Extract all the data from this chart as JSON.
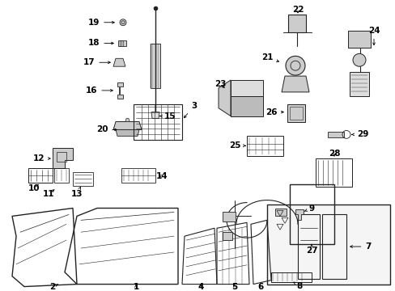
{
  "bg_color": "#ffffff",
  "fig_width": 4.89,
  "fig_height": 3.6,
  "dpi": 100,
  "line_color": "#222222",
  "label_fontsize": 7.5,
  "arrow_lw": 0.6,
  "arrow_ms": 5
}
